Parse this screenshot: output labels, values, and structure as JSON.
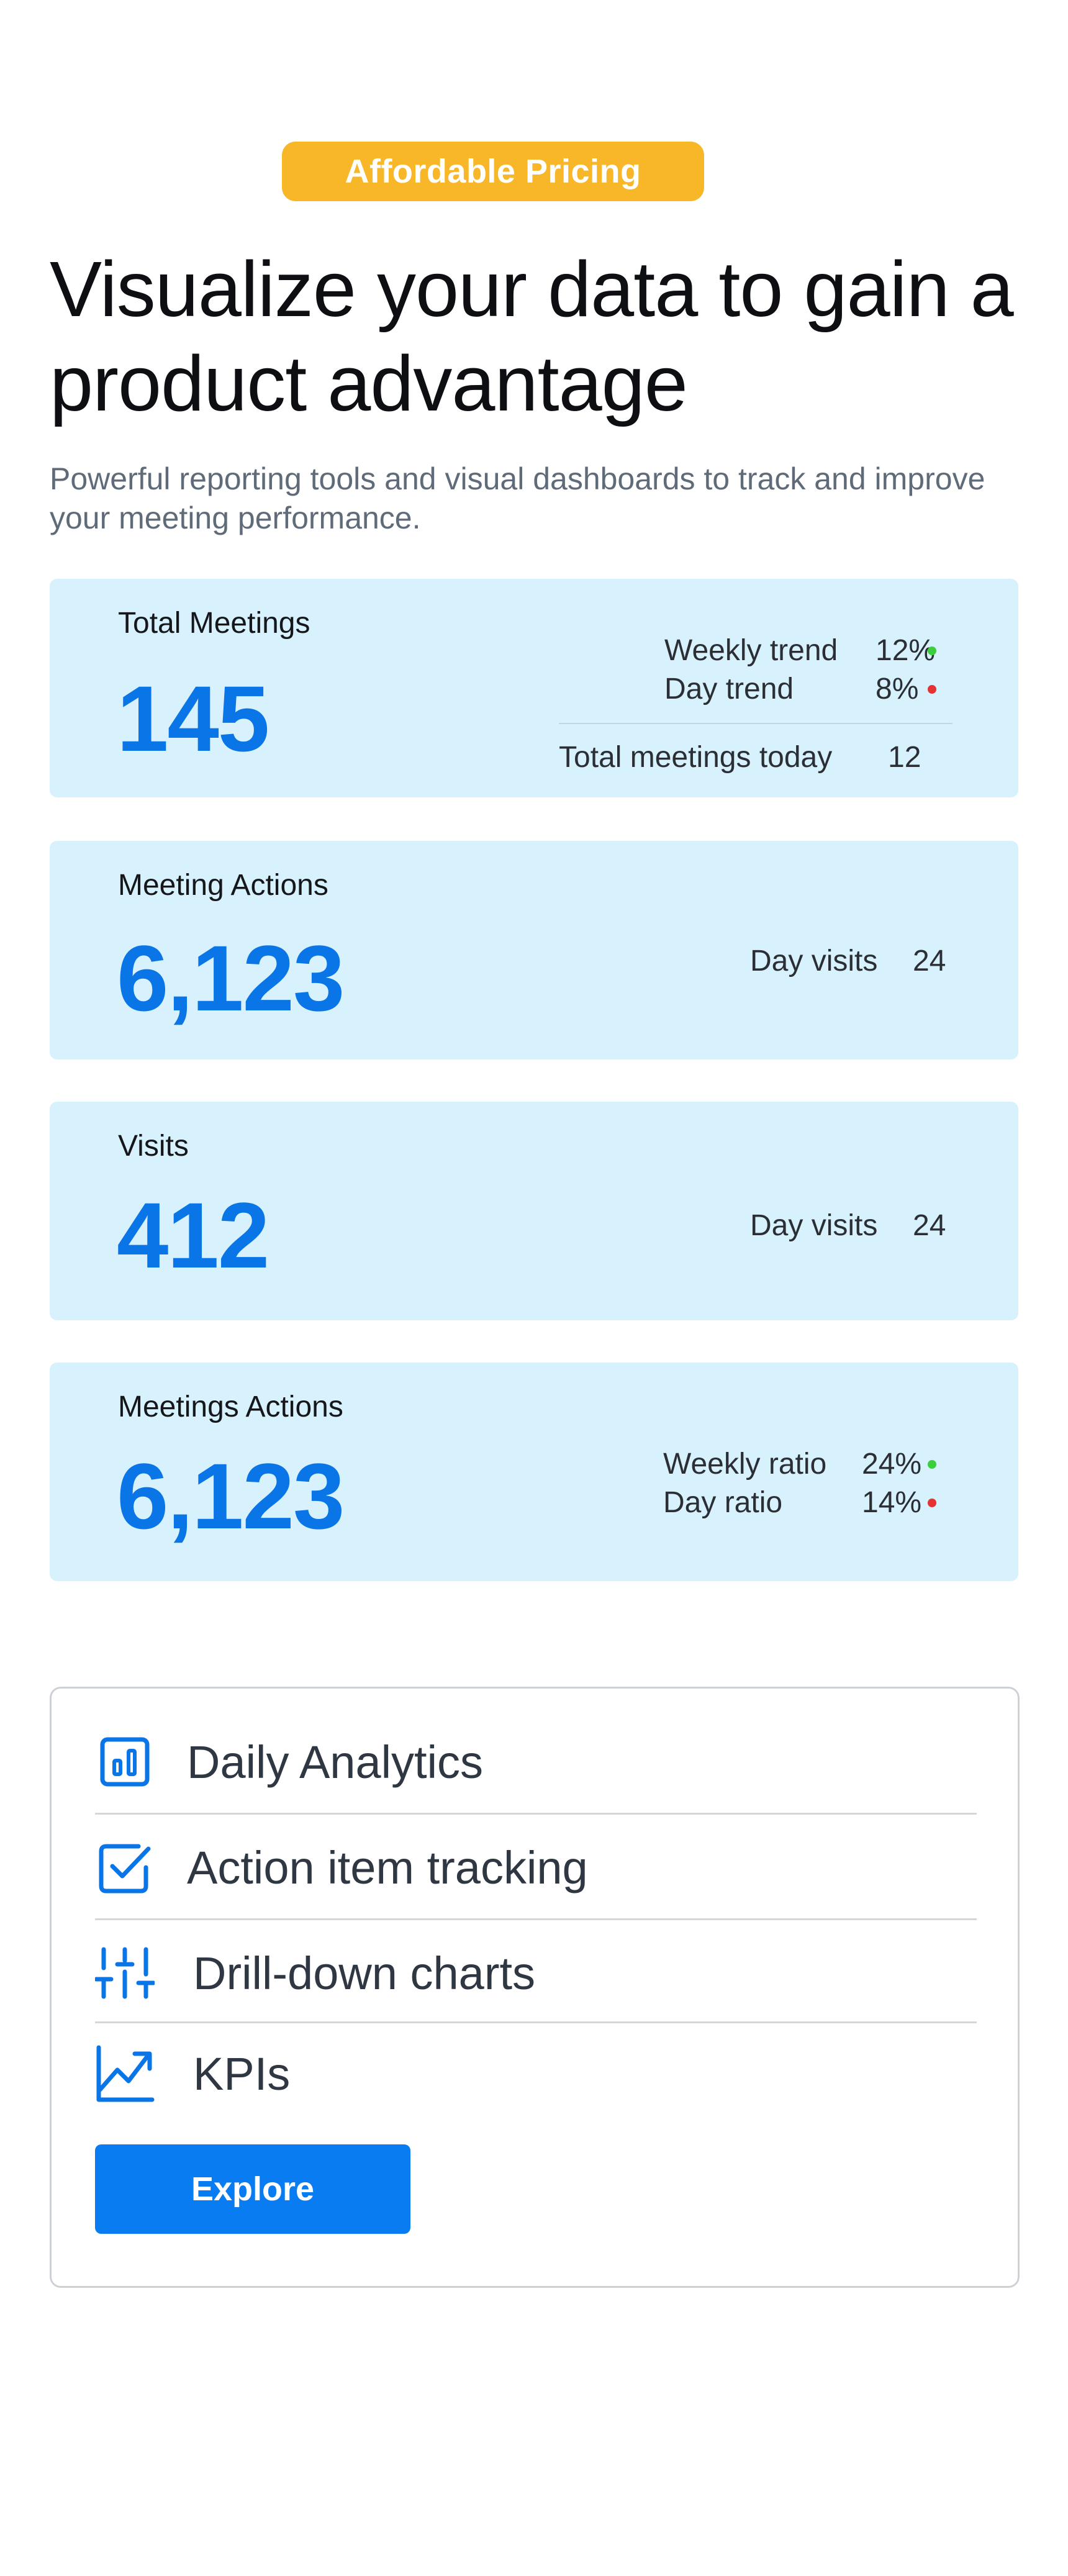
{
  "badge": "Affordable Pricing",
  "headline": "Visualize your data to gain a product advantage",
  "subtitle": "Powerful reporting tools and visual dashboards to track and improve your meeting performance.",
  "cards": [
    {
      "label": "Total Meetings",
      "value": "145",
      "stats": [
        {
          "label": "Weekly trend",
          "value": "12%",
          "indicator": "up"
        },
        {
          "label": "Day trend",
          "value": "8%",
          "indicator": "down"
        }
      ],
      "footer": {
        "label": "Total meetings today",
        "value": "12"
      }
    },
    {
      "label": "Meeting Actions",
      "value": "6,123",
      "stats": [
        {
          "label": "Day visits",
          "value": "24"
        }
      ]
    },
    {
      "label": "Visits",
      "value": "412",
      "stats": [
        {
          "label": "Day visits",
          "value": "24"
        }
      ]
    },
    {
      "label": "Meetings Actions",
      "value": "6,123",
      "stats": [
        {
          "label": "Weekly ratio",
          "value": "24%",
          "indicator": "up"
        },
        {
          "label": "Day ratio",
          "value": "14%",
          "indicator": "down"
        }
      ]
    }
  ],
  "features": [
    {
      "label": "Daily Analytics",
      "icon": "bar-chart-icon"
    },
    {
      "label": "Action item tracking",
      "icon": "checkbox-icon"
    },
    {
      "label": "Drill-down charts",
      "icon": "sliders-icon"
    },
    {
      "label": "KPIs",
      "icon": "trend-up-icon"
    }
  ],
  "explore_label": "Explore",
  "colors": {
    "badge": "#f7b728",
    "card_bg": "#d7f1fd",
    "accent": "#0a75e6",
    "up": "#3ccf3c",
    "down": "#e53232",
    "button": "#0a7cf2"
  }
}
